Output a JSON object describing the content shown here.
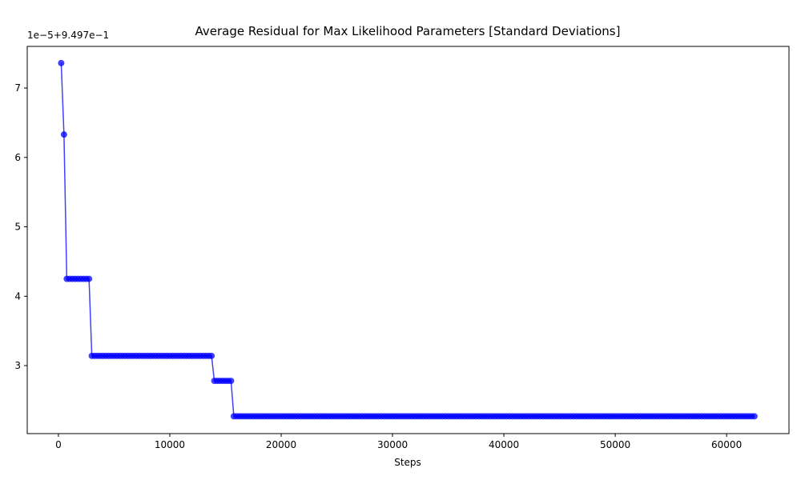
{
  "chart_data": {
    "type": "line",
    "title": "Average Residual for Max Likelihood Parameters [Standard Deviations]",
    "xlabel": "Steps",
    "ylabel": "",
    "offset_text": "1e−5+9.497e−1",
    "xlim": [
      -2800,
      65600
    ],
    "ylim": [
      2.02,
      7.6
    ],
    "xticks": [
      0,
      10000,
      20000,
      30000,
      40000,
      50000,
      60000
    ],
    "xtick_labels": [
      "0",
      "10000",
      "20000",
      "30000",
      "40000",
      "50000",
      "60000"
    ],
    "yticks": [
      3,
      4,
      5,
      6,
      7
    ],
    "ytick_labels": [
      "3",
      "4",
      "5",
      "6",
      "7"
    ],
    "series_color": "#0000ff",
    "grid": false,
    "legend": "none",
    "segments": [
      {
        "x_start": 250,
        "x_end": 250,
        "step": 250,
        "y": 7.36
      },
      {
        "x_start": 500,
        "x_end": 500,
        "step": 250,
        "y": 6.33
      },
      {
        "x_start": 750,
        "x_end": 2750,
        "step": 250,
        "y": 4.25
      },
      {
        "x_start": 3000,
        "x_end": 13750,
        "step": 250,
        "y": 3.14
      },
      {
        "x_start": 14000,
        "x_end": 15500,
        "step": 250,
        "y": 2.78
      },
      {
        "x_start": 15750,
        "x_end": 62500,
        "step": 250,
        "y": 2.27
      }
    ]
  }
}
